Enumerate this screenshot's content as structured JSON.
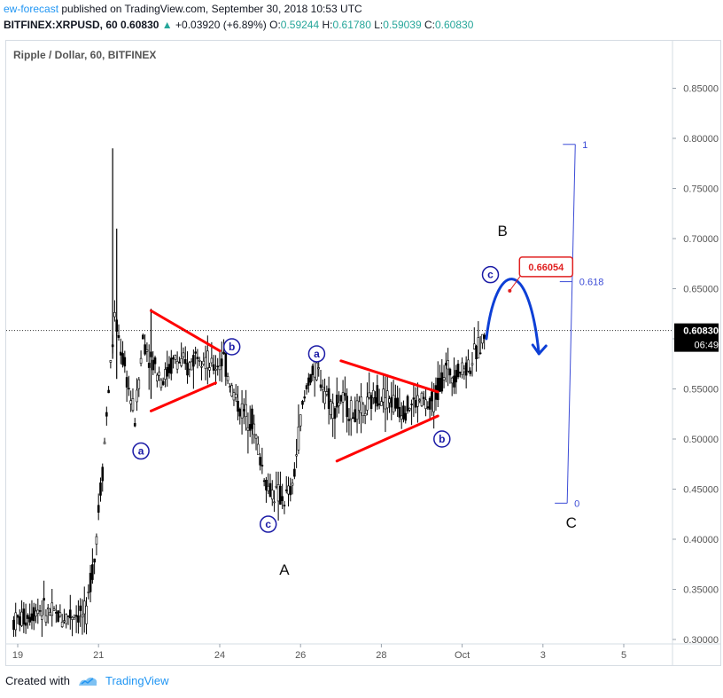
{
  "header": {
    "author": "ew-forecast",
    "published_text": "published on TradingView.com, September 30, 2018 10:53 UTC",
    "symbol": "BITFINEX:XRPUSD, 60",
    "last": "0.60830",
    "change_arrow": "▲",
    "change": "+0.03920 (+6.89%)",
    "open_label": "O:",
    "open": "0.59244",
    "high_label": "H:",
    "high": "0.61780",
    "low_label": "L:",
    "low": "0.59039",
    "close_label": "C:",
    "close": "0.60830"
  },
  "footer": {
    "created_with": "Created with",
    "brand": "TradingView"
  },
  "colors": {
    "up": "#26a69a",
    "candle": "#000000",
    "wedge": "#ff0000",
    "wave_label": "#1a1aa6",
    "projection": "#0d3fd6",
    "fib": "#3b4bd6",
    "price_box": "#000000",
    "target": "#e02020"
  },
  "chart_data": {
    "type": "candlestick",
    "title": "Ripple / Dollar, 60, BITFINEX",
    "y_axis": {
      "min": 0.3,
      "max": 0.85,
      "ticks": [
        "0.30000",
        "0.35000",
        "0.40000",
        "0.45000",
        "0.50000",
        "0.55000",
        "0.60000",
        "0.65000",
        "0.70000",
        "0.75000",
        "0.80000",
        "0.85000"
      ],
      "position": "right"
    },
    "x_axis": {
      "ticks": [
        "19",
        "21",
        "24",
        "26",
        "28",
        "Oct",
        "3",
        "5"
      ],
      "tick_days": [
        19,
        21,
        24,
        26,
        28,
        30,
        32,
        34
      ]
    },
    "last_price": {
      "value": 0.6083,
      "label": "0.60830",
      "countdown": "06:49"
    },
    "target": {
      "value": 0.66054,
      "label": "0.66054"
    },
    "price_path": [
      [
        18.9,
        0.318
      ],
      [
        19.2,
        0.322
      ],
      [
        19.5,
        0.331
      ],
      [
        19.8,
        0.326
      ],
      [
        20.1,
        0.322
      ],
      [
        20.4,
        0.326
      ],
      [
        20.7,
        0.324
      ],
      [
        20.8,
        0.36
      ],
      [
        20.9,
        0.38
      ],
      [
        21.0,
        0.43
      ],
      [
        21.1,
        0.47
      ],
      [
        21.25,
        0.55
      ],
      [
        21.4,
        0.62
      ],
      [
        21.5,
        0.6
      ],
      [
        21.7,
        0.56
      ],
      [
        21.9,
        0.52
      ],
      [
        22.0,
        0.56
      ],
      [
        22.1,
        0.6
      ],
      [
        22.3,
        0.58
      ],
      [
        22.6,
        0.56
      ],
      [
        22.9,
        0.58
      ],
      [
        23.2,
        0.57
      ],
      [
        23.5,
        0.59
      ],
      [
        23.8,
        0.57
      ],
      [
        24.1,
        0.58
      ],
      [
        24.3,
        0.55
      ],
      [
        24.5,
        0.53
      ],
      [
        24.8,
        0.52
      ],
      [
        25.0,
        0.48
      ],
      [
        25.2,
        0.45
      ],
      [
        25.4,
        0.445
      ],
      [
        25.6,
        0.44
      ],
      [
        25.8,
        0.45
      ],
      [
        26.0,
        0.52
      ],
      [
        26.2,
        0.56
      ],
      [
        26.4,
        0.57
      ],
      [
        26.6,
        0.55
      ],
      [
        26.8,
        0.53
      ],
      [
        27.0,
        0.54
      ],
      [
        27.3,
        0.525
      ],
      [
        27.6,
        0.53
      ],
      [
        27.9,
        0.545
      ],
      [
        28.2,
        0.54
      ],
      [
        28.5,
        0.53
      ],
      [
        28.8,
        0.535
      ],
      [
        29.0,
        0.54
      ],
      [
        29.2,
        0.53
      ],
      [
        29.4,
        0.55
      ],
      [
        29.6,
        0.57
      ],
      [
        29.8,
        0.565
      ],
      [
        30.0,
        0.57
      ],
      [
        30.2,
        0.575
      ],
      [
        30.4,
        0.59
      ],
      [
        30.6,
        0.6083
      ]
    ],
    "spikes": [
      {
        "day": 21.35,
        "high": 0.79,
        "low": 0.58
      },
      {
        "day": 21.45,
        "high": 0.71,
        "low": 0.56
      },
      {
        "day": 22.3,
        "high": 0.63,
        "low": 0.54
      }
    ],
    "trendlines": [
      {
        "from": [
          22.3,
          0.628
        ],
        "to": [
          24.0,
          0.588
        ]
      },
      {
        "from": [
          22.3,
          0.528
        ],
        "to": [
          23.9,
          0.556
        ]
      },
      {
        "from": [
          27.0,
          0.578
        ],
        "to": [
          29.4,
          0.547
        ]
      },
      {
        "from": [
          26.9,
          0.478
        ],
        "to": [
          29.4,
          0.523
        ]
      }
    ],
    "wave_labels": [
      {
        "text": "a",
        "circled": true,
        "day": 22.05,
        "value": 0.488
      },
      {
        "text": "b",
        "circled": true,
        "day": 24.3,
        "value": 0.592
      },
      {
        "text": "c",
        "circled": true,
        "day": 25.2,
        "value": 0.415
      },
      {
        "text": "A",
        "circled": false,
        "day": 25.6,
        "value": 0.37
      },
      {
        "text": "a",
        "circled": true,
        "day": 26.4,
        "value": 0.585
      },
      {
        "text": "b",
        "circled": true,
        "day": 29.5,
        "value": 0.5
      },
      {
        "text": "c",
        "circled": true,
        "day": 30.7,
        "value": 0.664
      },
      {
        "text": "B",
        "circled": false,
        "day": 31.0,
        "value": 0.708
      },
      {
        "text": "C",
        "circled": false,
        "day": 32.7,
        "value": 0.417
      }
    ],
    "projection": [
      [
        30.6,
        0.6
      ],
      [
        31.2,
        0.651
      ],
      [
        31.9,
        0.585
      ]
    ],
    "fibonacci": {
      "top_day": 32.8,
      "top_value": 0.794,
      "bottom_day": 32.6,
      "bottom_value": 0.436,
      "levels": [
        {
          "label": "1",
          "value": 0.794
        },
        {
          "label": "0.618",
          "value": 0.657
        },
        {
          "label": "0",
          "value": 0.436
        }
      ]
    }
  }
}
